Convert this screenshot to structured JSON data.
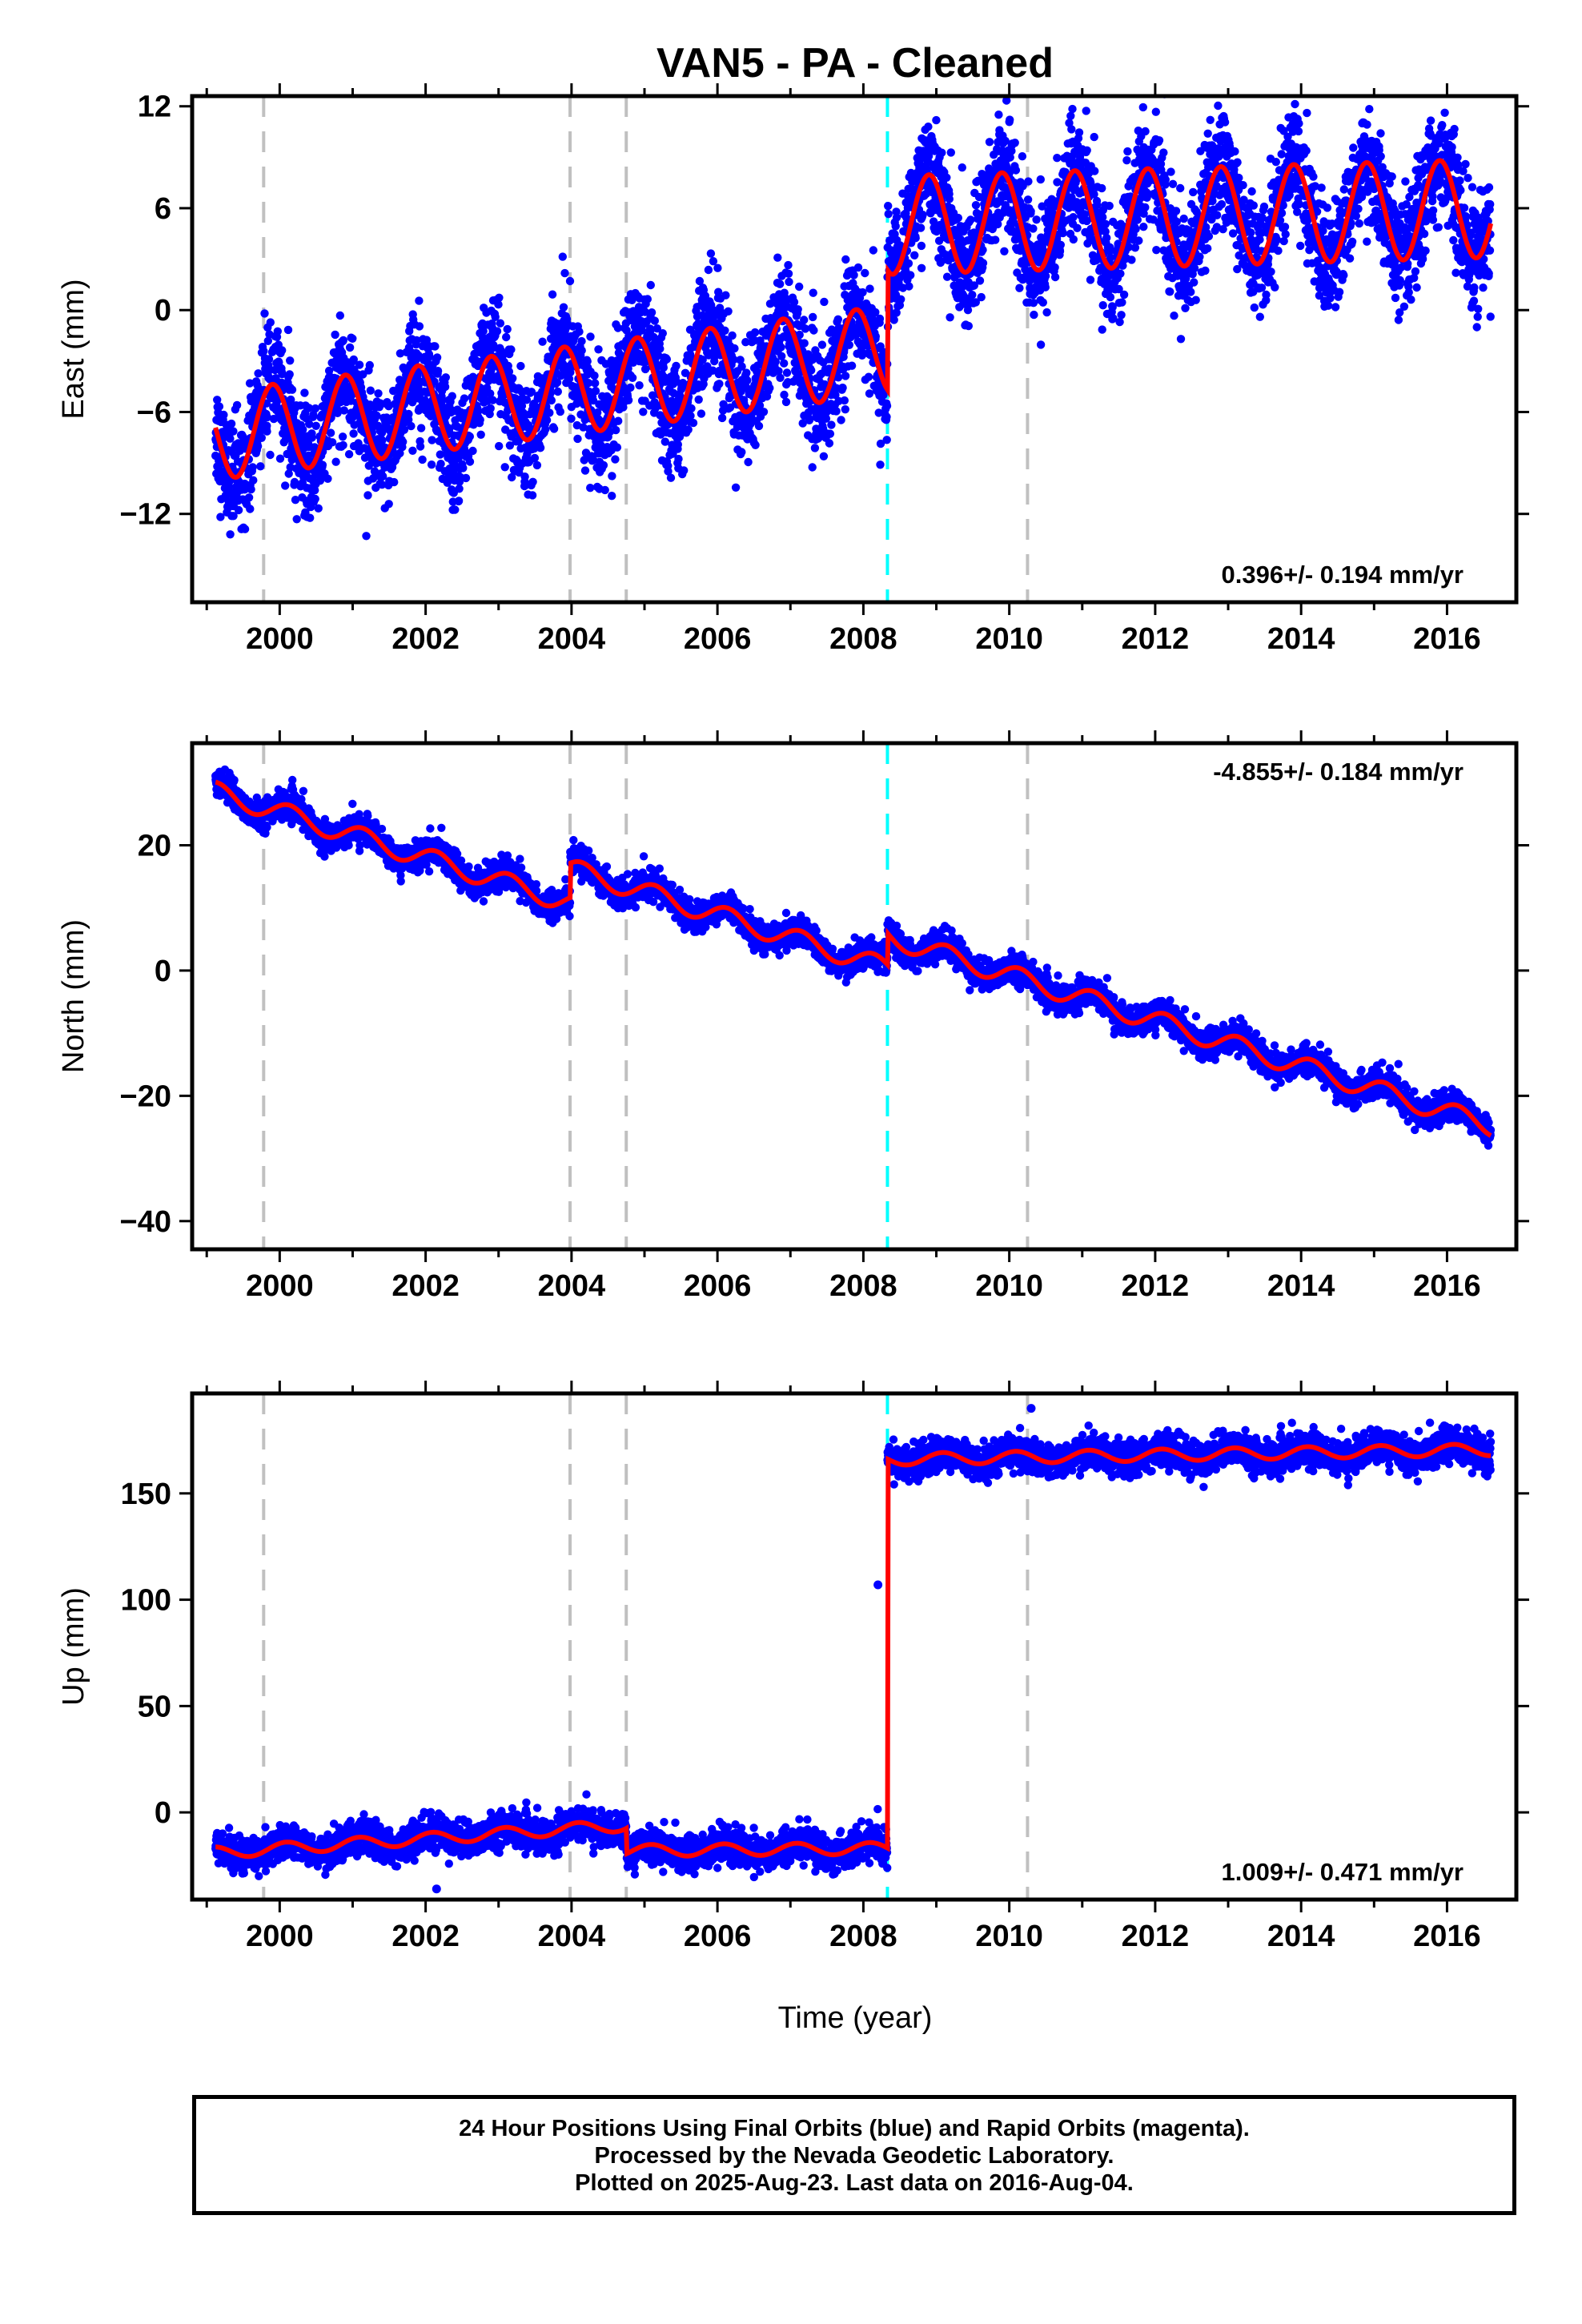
{
  "title": "VAN5  - PA - Cleaned",
  "xlabel": "Time (year)",
  "colors": {
    "data": "#0000ff",
    "model": "#ff0000",
    "antenna_change": "#c0c0c0",
    "earthquake": "#00ffff"
  },
  "footer": {
    "line1": "24 Hour Positions Using Final Orbits (blue) and Rapid Orbits (magenta).",
    "line2": "Processed by the Nevada Geodetic Laboratory.",
    "line3": "Plotted on 2025-Aug-23. Last data on 2016-Aug-04."
  },
  "chart_data": [
    {
      "type": "scatter",
      "component": "east",
      "ylabel": "East (mm)",
      "rate_label": "0.396+/- 0.194 mm/yr",
      "rate_position": "bottom-right",
      "xlim": [
        1998.8,
        2016.95
      ],
      "ylim": [
        -17.2,
        12.6
      ],
      "xticks": [
        2000,
        2002,
        2004,
        2006,
        2008,
        2010,
        2012,
        2014,
        2016
      ],
      "yticks": [
        12,
        6,
        0,
        -6,
        -12
      ],
      "x_range": [
        1999.12,
        2016.6
      ],
      "gray_dashed_lines_x": [
        1999.78,
        2003.98,
        2004.75,
        2010.25
      ],
      "cyan_dashed_lines_x": [
        2008.33
      ],
      "model": {
        "segments": [
          {
            "x0": 1999.12,
            "x1": 2008.33,
            "offset_start": -7.4,
            "rate": 0.55,
            "annual_amp": 2.6,
            "annual_phase": 2.2
          },
          {
            "x0": 2008.33,
            "x1": 2016.6,
            "offset_start": 5.0,
            "rate": 0.12,
            "annual_amp": 2.9,
            "annual_phase": 2.2
          }
        ],
        "small_offsets_x": [
          1999.78,
          2003.98
        ]
      },
      "noise_scatter_mm": 1.6
    },
    {
      "type": "scatter",
      "component": "north",
      "ylabel": "North (mm)",
      "rate_label": "-4.855+/- 0.184 mm/yr",
      "rate_position": "top-right",
      "xlim": [
        1998.8,
        2016.95
      ],
      "ylim": [
        -44.5,
        36.3
      ],
      "xticks": [
        2000,
        2002,
        2004,
        2006,
        2008,
        2010,
        2012,
        2014,
        2016
      ],
      "yticks": [
        20,
        0,
        -20,
        -40
      ],
      "x_range": [
        1999.12,
        2016.6
      ],
      "gray_dashed_lines_x": [
        1999.78,
        2003.98,
        2004.75,
        2010.25
      ],
      "cyan_dashed_lines_x": [
        2008.33
      ],
      "model": {
        "segments": [
          {
            "x0": 1999.12,
            "x1": 2016.6,
            "offset_start": 28.5,
            "rate": -3.65,
            "annual_amp": 1.6,
            "annual_phase": 0.7
          }
        ],
        "offsets": [
          {
            "x": 2003.98,
            "dy": 5.5
          },
          {
            "x": 2008.33,
            "dy": 5.0
          }
        ]
      },
      "noise_scatter_mm": 1.1
    },
    {
      "type": "scatter",
      "component": "up",
      "ylabel": "Up (mm)",
      "rate_label": "1.009+/- 0.471 mm/yr",
      "rate_position": "bottom-right",
      "xlim": [
        1998.8,
        2016.95
      ],
      "ylim": [
        -41,
        197
      ],
      "xticks": [
        2000,
        2002,
        2004,
        2006,
        2008,
        2010,
        2012,
        2014,
        2016
      ],
      "yticks": [
        150,
        100,
        50,
        0
      ],
      "x_range": [
        1999.12,
        2016.6
      ],
      "gray_dashed_lines_x": [
        1999.78,
        2003.98,
        2004.75,
        2010.25
      ],
      "cyan_dashed_lines_x": [
        2008.33
      ],
      "model": {
        "segments": [
          {
            "x0": 1999.12,
            "x1": 2004.75,
            "offset_start": -19.0,
            "rate": 2.3,
            "annual_amp": 2.8,
            "annual_phase": 1.0
          },
          {
            "x0": 2004.75,
            "x1": 2008.33,
            "offset_start": -18.0,
            "rate": 0.3,
            "annual_amp": 2.8,
            "annual_phase": 1.0
          },
          {
            "x0": 2008.33,
            "x1": 2016.6,
            "offset_start": 166.0,
            "rate": 0.55,
            "annual_amp": 2.8,
            "annual_phase": 1.0
          }
        ]
      },
      "noise_scatter_mm": 3.8,
      "outliers": [
        {
          "x": 2008.2,
          "y": 107
        },
        {
          "x": 2010.3,
          "y": 190
        },
        {
          "x": 2002.15,
          "y": -36
        }
      ]
    }
  ]
}
